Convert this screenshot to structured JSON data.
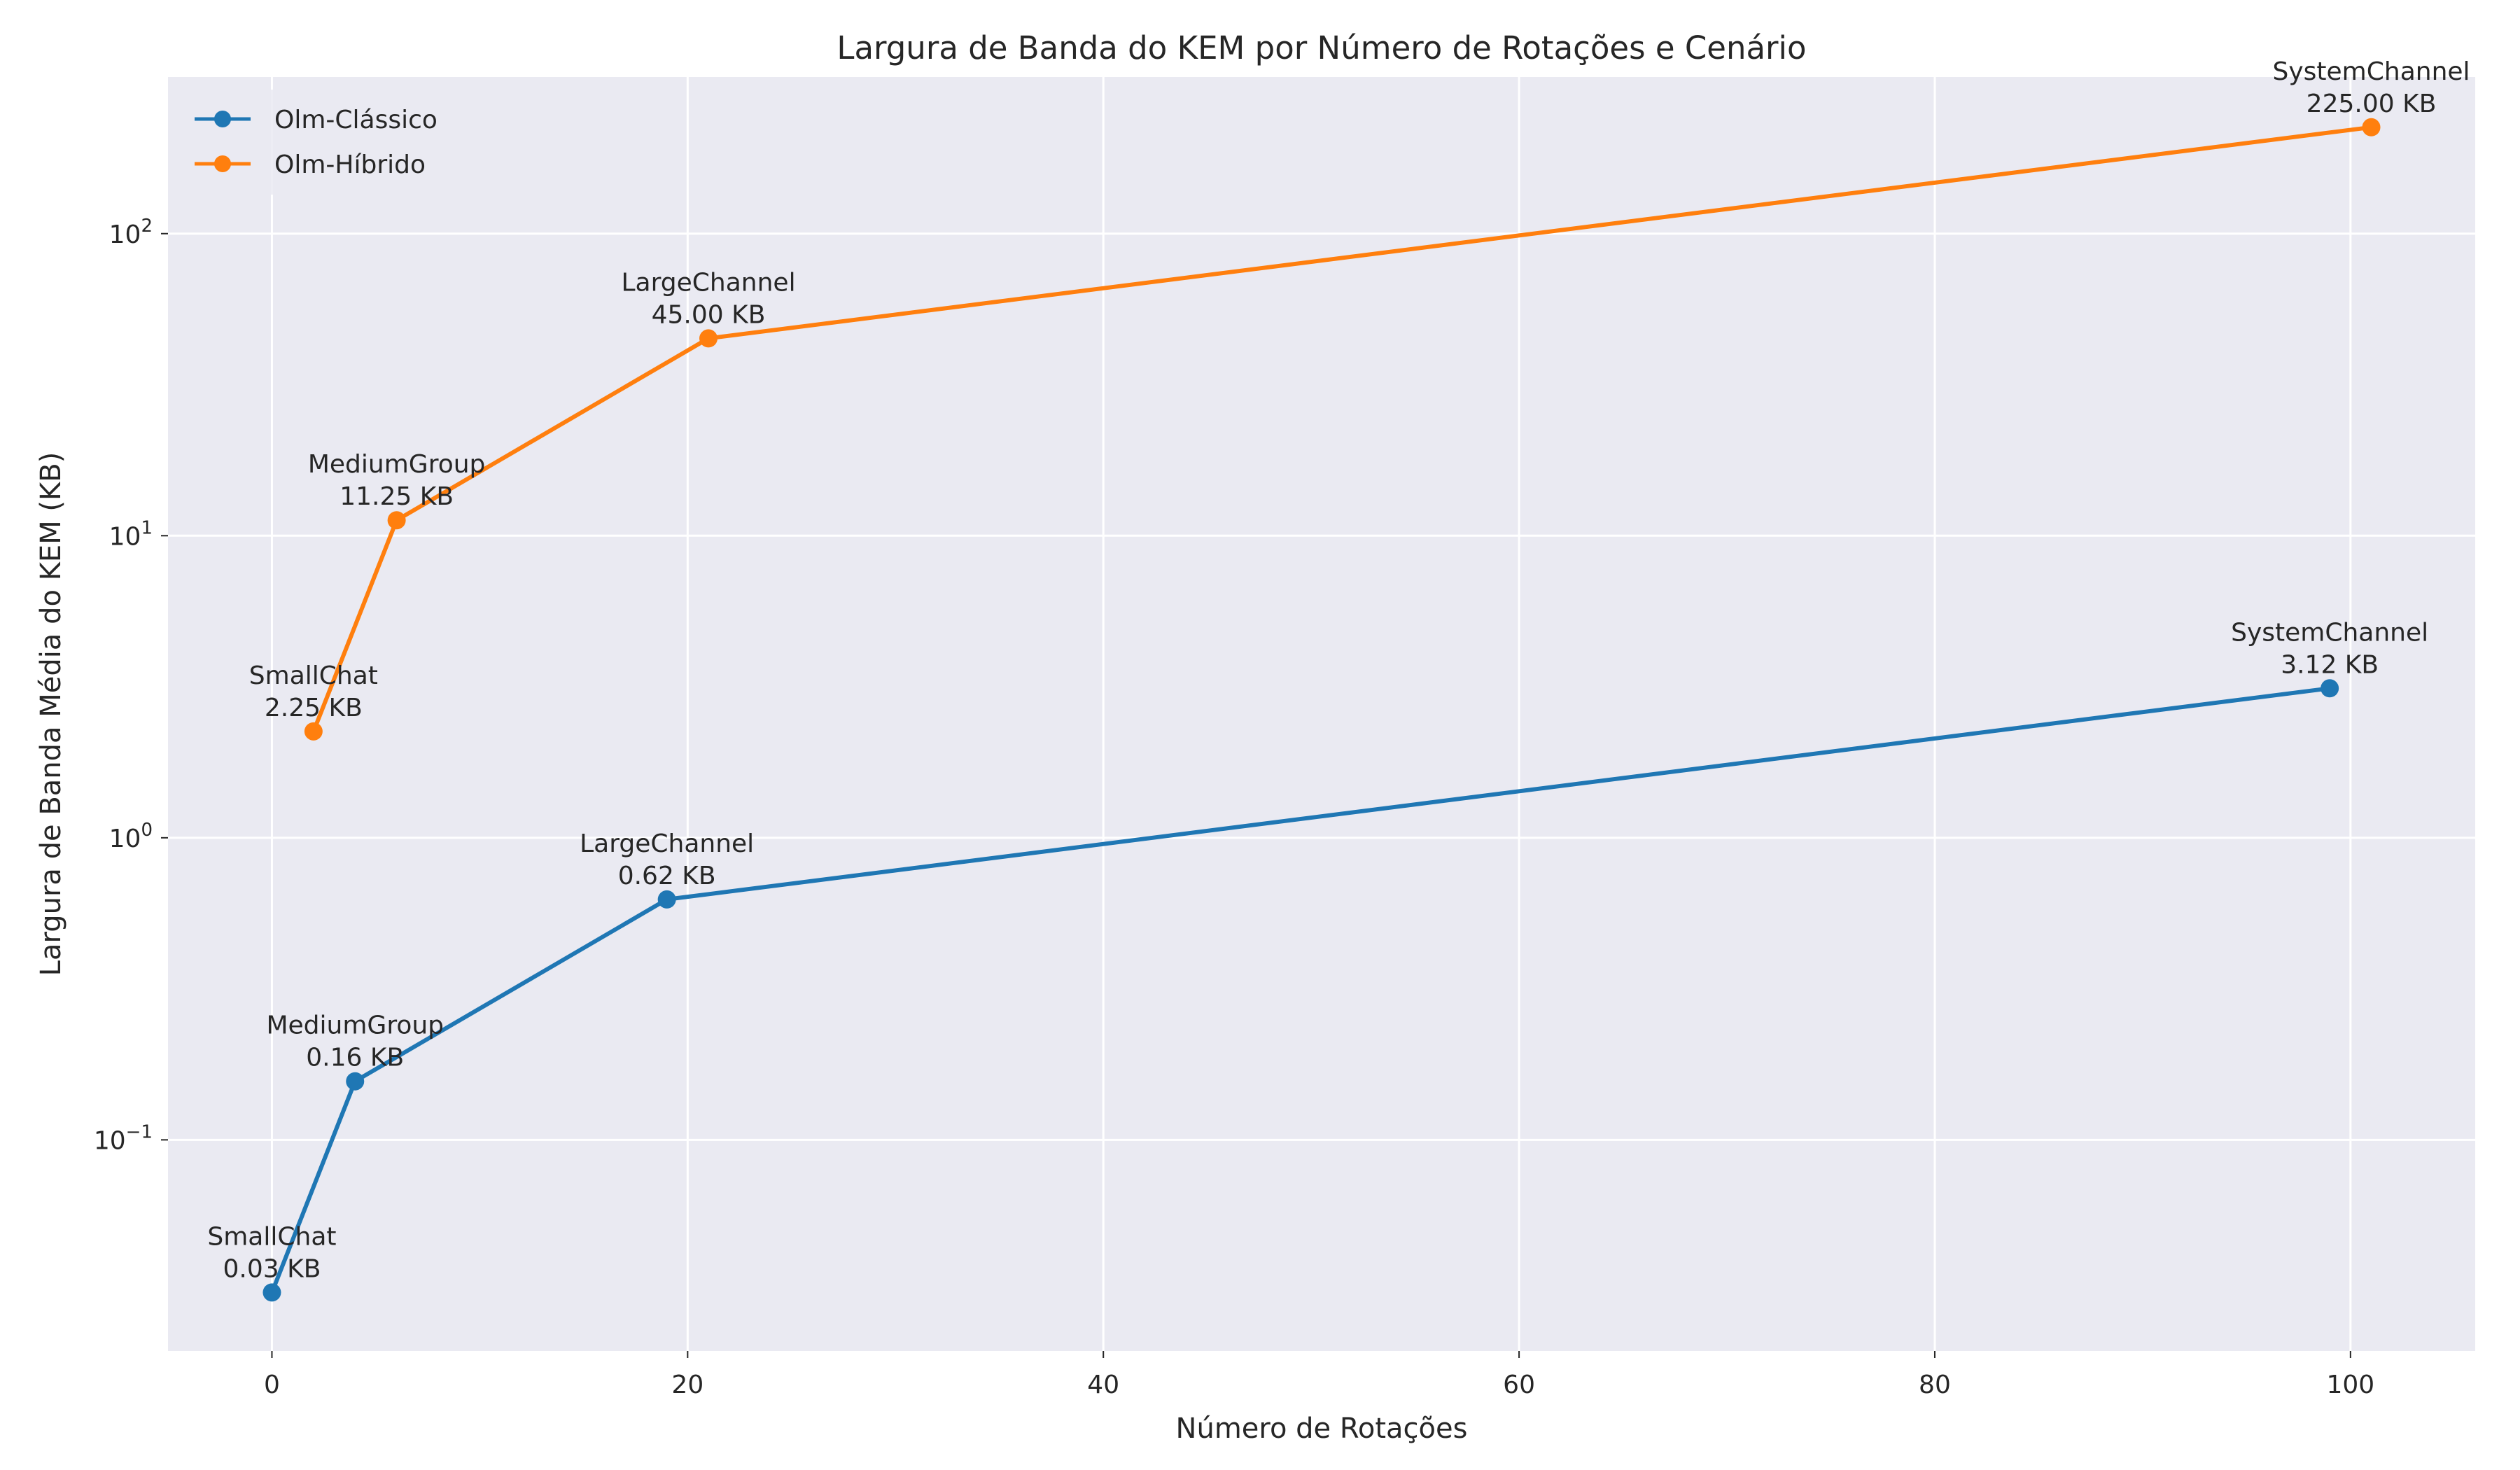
{
  "chart_data": {
    "type": "line",
    "title": "Largura de Banda do KEM por Número de Rotações e Cenário",
    "xlabel": "Número de Rotações",
    "ylabel": "Largura de Banda Média do KEM (KB)",
    "xlim": [
      -5,
      106
    ],
    "ylim": [
      0.02,
      330
    ],
    "yscale": "log",
    "grid": true,
    "legend_position": "top-left",
    "x_ticks": [
      0,
      20,
      40,
      60,
      80,
      100
    ],
    "y_ticks": [
      {
        "value": 0.1,
        "mantissa": "10",
        "exp": "−1"
      },
      {
        "value": 1,
        "mantissa": "10",
        "exp": "0"
      },
      {
        "value": 10,
        "mantissa": "10",
        "exp": "1"
      },
      {
        "value": 100,
        "mantissa": "10",
        "exp": "2"
      }
    ],
    "colors": {
      "background": "#eaeaf2",
      "grid": "#ffffff"
    },
    "series": [
      {
        "name": "Olm-Clássico",
        "color": "#1f77b4",
        "x": [
          0,
          4,
          19,
          99
        ],
        "values": [
          0.03125,
          0.15625,
          0.625,
          3.125
        ],
        "point_labels": [
          "SmallChat",
          "MediumGroup",
          "LargeChannel",
          "SystemChannel"
        ],
        "value_labels": [
          "0.03 KB",
          "0.16 KB",
          "0.62 KB",
          "3.12 KB"
        ]
      },
      {
        "name": "Olm-Híbrido",
        "color": "#ff7f0e",
        "x": [
          2,
          6,
          21,
          101
        ],
        "values": [
          2.25,
          11.25,
          45.0,
          225.0
        ],
        "point_labels": [
          "SmallChat",
          "MediumGroup",
          "LargeChannel",
          "SystemChannel"
        ],
        "value_labels": [
          "2.25 KB",
          "11.25 KB",
          "45.00 KB",
          "225.00 KB"
        ]
      }
    ]
  }
}
